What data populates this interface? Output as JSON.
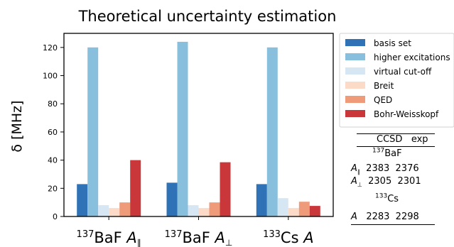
{
  "chart_data": {
    "type": "bar",
    "title": "Theoretical uncertainty estimation",
    "ylabel": "δ [MHz]",
    "xlabel": "",
    "ylim": [
      0,
      130
    ],
    "yticks": [
      0,
      20,
      40,
      60,
      80,
      100,
      120
    ],
    "grid": false,
    "legend_position": "right",
    "categories": [
      {
        "sup": "137",
        "base": "BaF ",
        "sym": "A",
        "sub": "∥"
      },
      {
        "sup": "137",
        "base": "BaF ",
        "sym": "A",
        "sub": "⊥"
      },
      {
        "sup": "133",
        "base": "Cs ",
        "sym": "A",
        "sub": ""
      }
    ],
    "series": [
      {
        "name": "basis set",
        "color": "#2f72b5",
        "values": [
          23,
          24,
          23
        ]
      },
      {
        "name": "higher excitations",
        "color": "#88bfdd",
        "values": [
          120,
          124,
          120
        ]
      },
      {
        "name": "virtual cut-off",
        "color": "#d6e6f3",
        "values": [
          8,
          8,
          13
        ]
      },
      {
        "name": "Breit",
        "color": "#fbdbc8",
        "values": [
          6,
          6,
          6
        ]
      },
      {
        "name": "QED",
        "color": "#ef9a79",
        "values": [
          10,
          10,
          10.5
        ]
      },
      {
        "name": "Bohr-Weisskopf",
        "color": "#c9373a",
        "values": [
          40,
          38.5,
          7.5
        ]
      }
    ]
  },
  "table": {
    "header": [
      "CCSD",
      "exp"
    ],
    "groups": [
      {
        "sup": "137",
        "name": "BaF",
        "rows": [
          {
            "sym": "A",
            "sub": "∥",
            "ccsd": "2383",
            "exp": "2376"
          },
          {
            "sym": "A",
            "sub": "⊥",
            "ccsd": "2305",
            "exp": "2301"
          }
        ]
      },
      {
        "sup": "133",
        "name": "Cs",
        "rows": [
          {
            "sym": "A",
            "sub": "",
            "ccsd": "2283",
            "exp": "2298"
          }
        ]
      }
    ]
  }
}
